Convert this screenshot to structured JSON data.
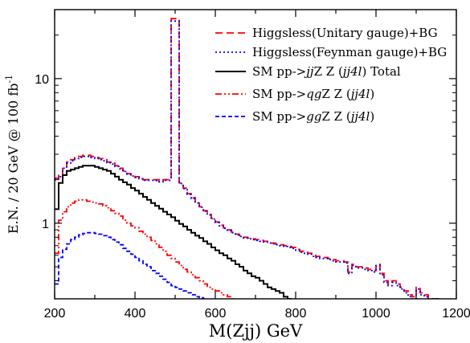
{
  "chart_data": {
    "type": "line",
    "xlabel": "M(Zjj)  GeV",
    "ylabel": "E.N. / 20 GeV @ 100 fb",
    "ylabel_sup": "-1",
    "xlim": [
      200,
      1200
    ],
    "ylim": [
      0.3,
      30
    ],
    "yscale": "log",
    "x_ticks": [
      200,
      400,
      600,
      800,
      1000,
      1200
    ],
    "x_tick_labels": [
      "200",
      "400",
      "600",
      "800",
      "1000",
      "1200"
    ],
    "y_ticks": [
      1,
      10
    ],
    "y_tick_labels": [
      "1",
      "10"
    ],
    "legend_position": "top-right",
    "grid": false,
    "series": [
      {
        "name": "Higgsless(Unitary gauge)+BG",
        "color": "#ff0000",
        "dash": "9,5",
        "x": [
          200,
          210,
          220,
          230,
          240,
          250,
          260,
          270,
          280,
          290,
          300,
          310,
          320,
          330,
          340,
          350,
          360,
          370,
          380,
          390,
          400,
          410,
          420,
          430,
          440,
          450,
          460,
          470,
          480,
          490,
          500,
          510,
          520,
          530,
          540,
          550,
          560,
          570,
          580,
          590,
          600,
          610,
          620,
          630,
          640,
          650,
          660,
          670,
          680,
          690,
          700,
          710,
          720,
          730,
          740,
          750,
          760,
          770,
          780,
          790,
          800,
          810,
          820,
          830,
          840,
          850,
          860,
          870,
          880,
          890,
          900,
          910,
          920,
          930,
          940,
          950,
          960,
          970,
          980,
          990,
          1000,
          1010,
          1020,
          1030,
          1040,
          1050,
          1060,
          1070,
          1080,
          1090,
          1100,
          1110,
          1120,
          1130,
          1140,
          1150
        ],
        "y": [
          2.05,
          2.15,
          2.45,
          2.65,
          2.75,
          2.85,
          2.9,
          2.95,
          2.95,
          2.9,
          2.85,
          2.8,
          2.75,
          2.65,
          2.6,
          2.5,
          2.4,
          2.3,
          2.2,
          2.15,
          2.1,
          2.05,
          2.0,
          2.0,
          2.0,
          2.0,
          1.95,
          2.0,
          2.0,
          26.0,
          26.0,
          1.9,
          1.75,
          1.6,
          1.5,
          1.4,
          1.3,
          1.22,
          1.15,
          1.08,
          1.02,
          0.97,
          0.93,
          0.9,
          0.87,
          0.84,
          0.82,
          0.8,
          0.79,
          0.78,
          0.77,
          0.76,
          0.75,
          0.74,
          0.73,
          0.72,
          0.71,
          0.7,
          0.69,
          0.68,
          0.66,
          0.64,
          0.63,
          0.62,
          0.6,
          0.59,
          0.58,
          0.58,
          0.57,
          0.56,
          0.55,
          0.55,
          0.54,
          0.46,
          0.52,
          0.5,
          0.5,
          0.49,
          0.48,
          0.47,
          0.52,
          0.45,
          0.4,
          0.38,
          0.4,
          0.38,
          0.36,
          0.34,
          0.32,
          0.31,
          0.36,
          0.33,
          0.32,
          0.3,
          0.3,
          0.3
        ]
      },
      {
        "name": "Higgsless(Feynman gauge)+BG",
        "color": "#0000ff",
        "dash": "2,3",
        "x": [
          200,
          210,
          220,
          230,
          240,
          250,
          260,
          270,
          280,
          290,
          300,
          310,
          320,
          330,
          340,
          350,
          360,
          370,
          380,
          390,
          400,
          410,
          420,
          430,
          440,
          450,
          460,
          470,
          480,
          490,
          500,
          510,
          520,
          530,
          540,
          550,
          560,
          570,
          580,
          590,
          600,
          610,
          620,
          630,
          640,
          650,
          660,
          670,
          680,
          690,
          700,
          710,
          720,
          730,
          740,
          750,
          760,
          770,
          780,
          790,
          800,
          810,
          820,
          830,
          840,
          850,
          860,
          870,
          880,
          890,
          900,
          910,
          920,
          930,
          940,
          950,
          960,
          970,
          980,
          990,
          1000,
          1010,
          1020,
          1030,
          1040,
          1050,
          1060,
          1070,
          1080,
          1090,
          1100,
          1110,
          1120,
          1130,
          1140,
          1150
        ],
        "y": [
          2.0,
          2.1,
          2.4,
          2.6,
          2.7,
          2.8,
          2.85,
          2.9,
          2.9,
          2.85,
          2.8,
          2.75,
          2.7,
          2.62,
          2.56,
          2.47,
          2.37,
          2.28,
          2.18,
          2.12,
          2.07,
          2.03,
          1.98,
          1.98,
          1.98,
          1.97,
          1.93,
          1.98,
          1.98,
          25.0,
          25.0,
          1.88,
          1.73,
          1.58,
          1.48,
          1.38,
          1.29,
          1.21,
          1.14,
          1.07,
          1.01,
          0.96,
          0.92,
          0.89,
          0.86,
          0.83,
          0.81,
          0.79,
          0.78,
          0.77,
          0.76,
          0.75,
          0.74,
          0.73,
          0.72,
          0.71,
          0.7,
          0.69,
          0.68,
          0.67,
          0.65,
          0.63,
          0.62,
          0.61,
          0.59,
          0.58,
          0.57,
          0.57,
          0.56,
          0.55,
          0.54,
          0.54,
          0.53,
          0.45,
          0.51,
          0.49,
          0.49,
          0.48,
          0.47,
          0.46,
          0.51,
          0.44,
          0.39,
          0.37,
          0.39,
          0.37,
          0.35,
          0.33,
          0.31,
          0.3,
          0.35,
          0.32,
          0.31,
          0.3,
          0.3,
          0.3
        ]
      },
      {
        "name": "SM pp->jjZ Z (jj4l)  Total",
        "color": "#000000",
        "dash": "",
        "x": [
          200,
          210,
          220,
          230,
          240,
          250,
          260,
          270,
          280,
          290,
          300,
          310,
          320,
          330,
          340,
          350,
          360,
          370,
          380,
          390,
          400,
          410,
          420,
          430,
          440,
          450,
          460,
          470,
          480,
          490,
          500,
          510,
          520,
          530,
          540,
          550,
          560,
          570,
          580,
          590,
          600,
          610,
          620,
          630,
          640,
          650,
          660,
          670,
          680,
          690,
          700,
          710,
          720,
          730,
          740,
          750,
          760,
          770,
          780
        ],
        "y": [
          1.25,
          1.9,
          2.15,
          2.3,
          2.35,
          2.4,
          2.45,
          2.5,
          2.5,
          2.5,
          2.45,
          2.4,
          2.35,
          2.3,
          2.2,
          2.1,
          2.0,
          1.92,
          1.85,
          1.75,
          1.68,
          1.6,
          1.52,
          1.45,
          1.38,
          1.32,
          1.26,
          1.2,
          1.15,
          1.1,
          1.04,
          0.99,
          0.95,
          0.9,
          0.86,
          0.82,
          0.79,
          0.75,
          0.72,
          0.68,
          0.65,
          0.62,
          0.6,
          0.57,
          0.55,
          0.52,
          0.5,
          0.47,
          0.45,
          0.43,
          0.42,
          0.4,
          0.38,
          0.36,
          0.35,
          0.34,
          0.33,
          0.31,
          0.3
        ]
      },
      {
        "name": "SM pp->qgZ Z (jj4l)",
        "color": "#ff0000",
        "dash": "8,3,2,3,2,3",
        "x": [
          200,
          210,
          220,
          230,
          240,
          250,
          260,
          270,
          280,
          290,
          300,
          310,
          320,
          330,
          340,
          350,
          360,
          370,
          380,
          390,
          400,
          410,
          420,
          430,
          440,
          450,
          460,
          470,
          480,
          490,
          500,
          510,
          520,
          530,
          540,
          550,
          560,
          570,
          580,
          590,
          600,
          610,
          620,
          630,
          640
        ],
        "y": [
          0.62,
          1.05,
          1.2,
          1.3,
          1.38,
          1.42,
          1.45,
          1.45,
          1.42,
          1.4,
          1.38,
          1.36,
          1.32,
          1.28,
          1.22,
          1.17,
          1.12,
          1.05,
          1.0,
          0.96,
          0.93,
          0.88,
          0.84,
          0.8,
          0.76,
          0.72,
          0.68,
          0.64,
          0.6,
          0.57,
          0.54,
          0.51,
          0.48,
          0.46,
          0.44,
          0.42,
          0.4,
          0.38,
          0.36,
          0.35,
          0.34,
          0.33,
          0.32,
          0.31,
          0.3
        ]
      },
      {
        "name": "SM pp->ggZ Z (jj4l)",
        "color": "#0000ff",
        "dash": "5,3",
        "x": [
          200,
          210,
          220,
          230,
          240,
          250,
          260,
          270,
          280,
          290,
          300,
          310,
          320,
          330,
          340,
          350,
          360,
          370,
          380,
          390,
          400,
          410,
          420,
          430,
          440,
          450,
          460,
          470,
          480,
          490,
          500,
          510,
          520,
          530,
          540,
          550,
          560,
          570
        ],
        "y": [
          0.38,
          0.58,
          0.66,
          0.72,
          0.77,
          0.8,
          0.83,
          0.85,
          0.86,
          0.86,
          0.85,
          0.84,
          0.82,
          0.8,
          0.77,
          0.74,
          0.71,
          0.67,
          0.64,
          0.61,
          0.58,
          0.55,
          0.52,
          0.5,
          0.47,
          0.45,
          0.43,
          0.41,
          0.39,
          0.37,
          0.36,
          0.35,
          0.34,
          0.33,
          0.32,
          0.31,
          0.305,
          0.3
        ]
      }
    ]
  }
}
